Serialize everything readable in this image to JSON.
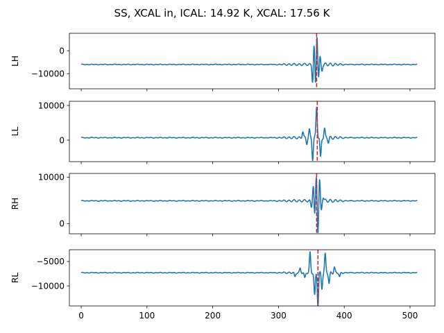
{
  "chart_data": {
    "type": "line",
    "title": "SS, XCAL in, ICAL: 14.92 K, XCAL: 17.56 K",
    "shared_x": true,
    "xlim": [
      -18,
      538
    ],
    "x_ticks": [
      0,
      100,
      200,
      300,
      400,
      500
    ],
    "x_range": [
      0,
      511
    ],
    "line_color": "#1f77b4",
    "marker_color": "#d62728",
    "marker_style": "dashed",
    "subplots": [
      {
        "ylabel": "LH",
        "ylim": [
          -16600,
          7600
        ],
        "y_ticks": [
          0,
          -10000
        ],
        "baseline": -6000,
        "peak_x": 358,
        "marker_x": 358,
        "features": [
          {
            "x": 352,
            "y": -14000
          },
          {
            "x": 354,
            "y": 3000
          },
          {
            "x": 356.5,
            "y": -16000
          },
          {
            "x": 358.5,
            "y": 7400
          },
          {
            "x": 361,
            "y": -12000
          },
          {
            "x": 363,
            "y": -2500
          },
          {
            "x": 366,
            "y": -8500
          }
        ]
      },
      {
        "ylabel": "LL",
        "ylim": [
          -6200,
          11200
        ],
        "y_ticks": [
          10000,
          0
        ],
        "baseline": 700,
        "peak_x": 359,
        "marker_x": 359,
        "features": [
          {
            "x": 337,
            "y": 2500
          },
          {
            "x": 343,
            "y": -1000
          },
          {
            "x": 347,
            "y": 3000
          },
          {
            "x": 352,
            "y": -5500
          },
          {
            "x": 358,
            "y": 9600
          },
          {
            "x": 364,
            "y": -5000
          },
          {
            "x": 370,
            "y": 3200
          },
          {
            "x": 376,
            "y": -600
          }
        ]
      },
      {
        "ylabel": "RH",
        "ylim": [
          -2200,
          10800
        ],
        "y_ticks": [
          10000,
          0
        ],
        "baseline": 4900,
        "peak_x": 358,
        "marker_x": 358,
        "features": [
          {
            "x": 350,
            "y": 3600
          },
          {
            "x": 353,
            "y": 8500
          },
          {
            "x": 355,
            "y": 1400
          },
          {
            "x": 357.5,
            "y": 10200
          },
          {
            "x": 360,
            "y": -2000
          },
          {
            "x": 362.5,
            "y": 9500
          },
          {
            "x": 365,
            "y": 2800
          },
          {
            "x": 368,
            "y": 5800
          }
        ]
      },
      {
        "ylabel": "RL",
        "ylim": [
          -14100,
          -2600
        ],
        "y_ticks": [
          -5000,
          -10000
        ],
        "baseline": -7300,
        "peak_x": 360,
        "marker_x": 360,
        "features": [
          {
            "x": 325,
            "y": -8200
          },
          {
            "x": 333,
            "y": -6400
          },
          {
            "x": 340,
            "y": -8500
          },
          {
            "x": 348,
            "y": -3200
          },
          {
            "x": 355,
            "y": -12000
          },
          {
            "x": 360,
            "y": -14000
          },
          {
            "x": 366,
            "y": -10500
          },
          {
            "x": 371,
            "y": -3600
          },
          {
            "x": 377,
            "y": -9500
          },
          {
            "x": 385,
            "y": -6200
          },
          {
            "x": 393,
            "y": -8200
          }
        ]
      }
    ]
  }
}
